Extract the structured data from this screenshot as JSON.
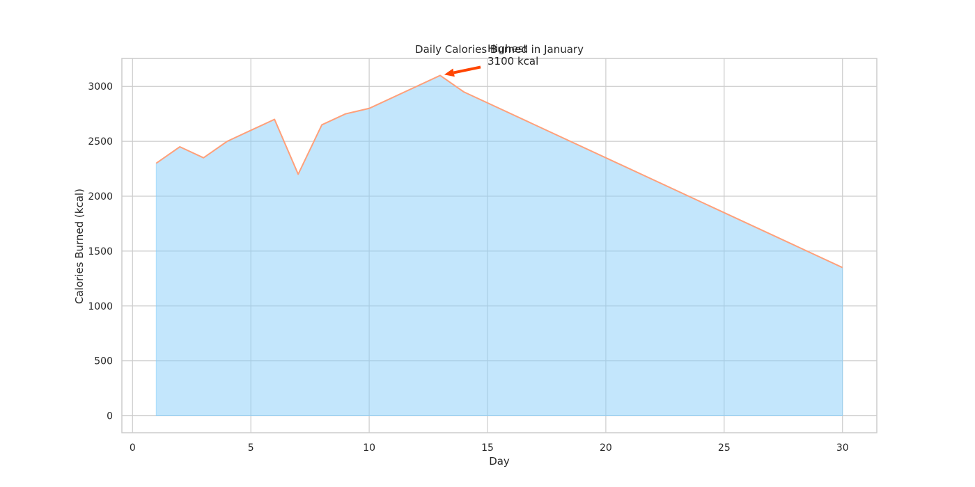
{
  "chart_data": {
    "type": "area",
    "title": "Daily Calories Burned in January",
    "xlabel": "Day",
    "ylabel": "Calories Burned (kcal)",
    "xlim": [
      -0.45,
      31.45
    ],
    "ylim": [
      -155,
      3255
    ],
    "xticks": [
      0,
      5,
      10,
      15,
      20,
      25,
      30
    ],
    "yticks": [
      0,
      500,
      1000,
      1500,
      2000,
      2500,
      3000
    ],
    "grid": true,
    "x": [
      1,
      2,
      3,
      4,
      5,
      6,
      7,
      8,
      9,
      10,
      13,
      14,
      30
    ],
    "series": [
      {
        "values": [
          2300,
          2450,
          2350,
          2500,
          2600,
          2700,
          2200,
          2650,
          2750,
          2800,
          3100,
          2950,
          1350
        ]
      }
    ],
    "annotation": {
      "line1": "Highest",
      "line2": "3100 kcal",
      "x": 13,
      "y": 3100
    },
    "colors": {
      "fill": "#87CEFA",
      "line": "#FFA07A",
      "arrow": "#FF4500",
      "grid": "#cccccc",
      "text": "#262626"
    }
  }
}
